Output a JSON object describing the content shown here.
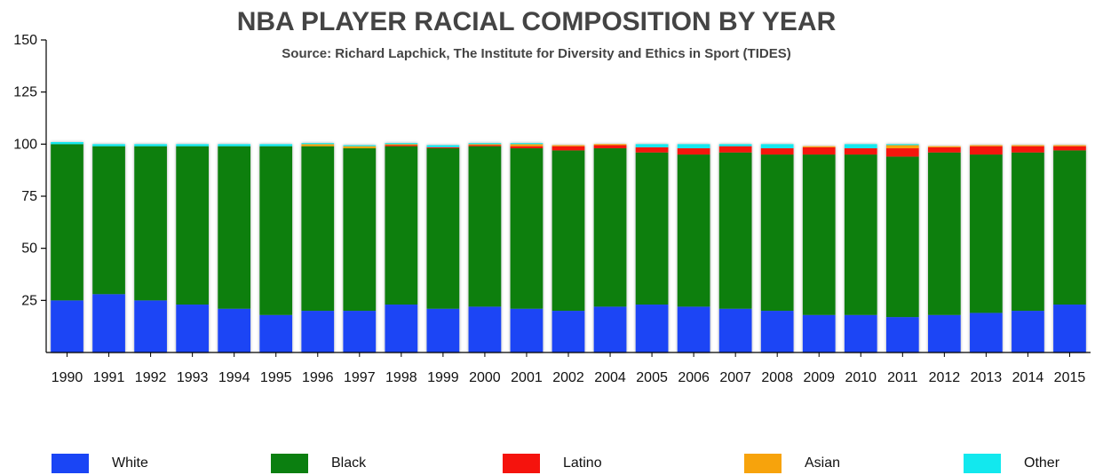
{
  "chart_data": {
    "type": "bar",
    "stacked": true,
    "title": "NBA PLAYER RACIAL COMPOSITION BY YEAR",
    "subtitle": "Source: Richard Lapchick, The Institute for Diversity and Ethics in Sport (TIDES)",
    "xlabel": "",
    "ylabel": "",
    "ylim": [
      0,
      150
    ],
    "yticks": [
      25,
      50,
      75,
      100,
      125,
      150
    ],
    "grid": false,
    "legend_position": "bottom",
    "categories": [
      "1990",
      "1991",
      "1992",
      "1993",
      "1994",
      "1995",
      "1996",
      "1997",
      "1998",
      "1999",
      "2000",
      "2001",
      "2002",
      "2004",
      "2005",
      "2006",
      "2007",
      "2008",
      "2009",
      "2010",
      "2011",
      "2012",
      "2013",
      "2014",
      "2015"
    ],
    "series": [
      {
        "name": "White",
        "color": "#1a45f5",
        "values": [
          25,
          28,
          25,
          23,
          21,
          18,
          20,
          20,
          23,
          21,
          22,
          21,
          20,
          22,
          23,
          22,
          21,
          20,
          18,
          18,
          17,
          18,
          19,
          20,
          23
        ]
      },
      {
        "name": "Black",
        "color": "#0b7f10",
        "values": [
          75,
          71,
          74,
          76,
          78,
          81,
          79,
          78,
          76,
          77,
          77,
          77,
          77,
          76,
          73,
          73,
          75,
          75,
          77,
          77,
          77,
          78,
          76,
          76,
          74
        ]
      },
      {
        "name": "Latino",
        "color": "#f5130d",
        "values": [
          0,
          0,
          0,
          0,
          0,
          0,
          0,
          0,
          0.5,
          0.5,
          0.5,
          1,
          2,
          1.5,
          2.5,
          3,
          3,
          3,
          3.5,
          3,
          4,
          2.5,
          4,
          3,
          2
        ]
      },
      {
        "name": "Asian",
        "color": "#f7a30c",
        "values": [
          0,
          0,
          0,
          0,
          0,
          0,
          1,
          1,
          0.5,
          0,
          0.5,
          1,
          0.5,
          0.5,
          0,
          0,
          0,
          0,
          0.5,
          0,
          1.5,
          0.5,
          0.5,
          0.5,
          0.5
        ]
      },
      {
        "name": "Other",
        "color": "#12e8ee",
        "values": [
          1,
          1,
          1,
          1,
          1,
          1,
          0.5,
          0.5,
          0.5,
          1,
          0.5,
          0.5,
          0,
          0,
          1.5,
          2,
          1,
          2,
          0,
          2,
          0.5,
          0,
          0,
          0,
          0
        ]
      }
    ]
  }
}
